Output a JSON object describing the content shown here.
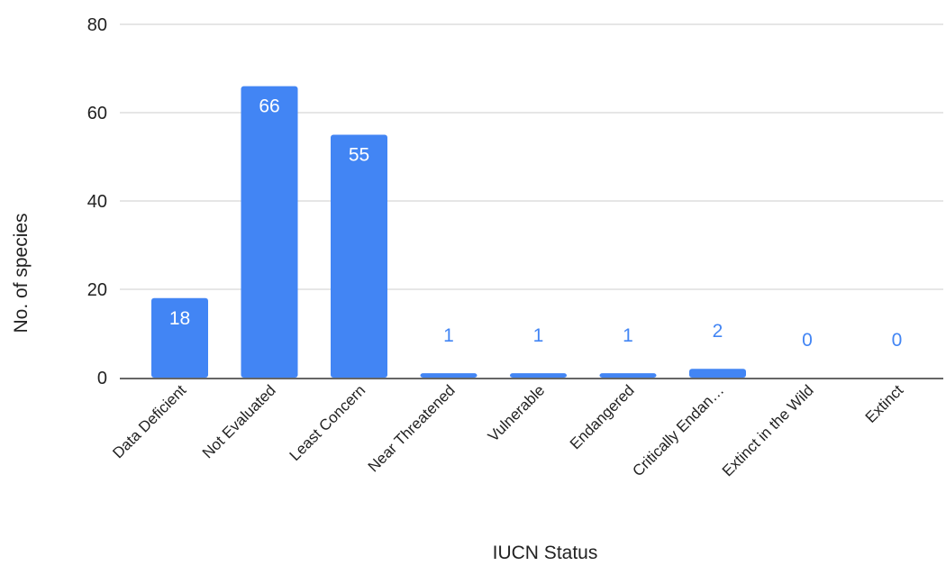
{
  "chart_data": {
    "type": "bar",
    "title": "",
    "xlabel": "IUCN Status",
    "ylabel": "No. of species",
    "categories": [
      "Data Deficient",
      "Not Evaluated",
      "Least Concern",
      "Near Threatened",
      "Vulnerable",
      "Endangered",
      "Critically Endan…",
      "Extinct in the Wild",
      "Extinct"
    ],
    "values": [
      18,
      66,
      55,
      1,
      1,
      1,
      2,
      0,
      0
    ],
    "data_labels": [
      "18",
      "66",
      "55",
      "1",
      "1",
      "1",
      "2",
      "0",
      "0"
    ],
    "ylim": [
      0,
      80
    ],
    "yticks": [
      0,
      20,
      40,
      60,
      80
    ],
    "ytick_labels": [
      "0",
      "20",
      "40",
      "60",
      "80"
    ],
    "grid": true,
    "legend": "none",
    "colors": {
      "bar": "#4285f4",
      "label_inside": "#ffffff",
      "label_outside": "#4285f4",
      "grid": "#cccccc",
      "axis": "#333333",
      "text": "#222222"
    }
  }
}
